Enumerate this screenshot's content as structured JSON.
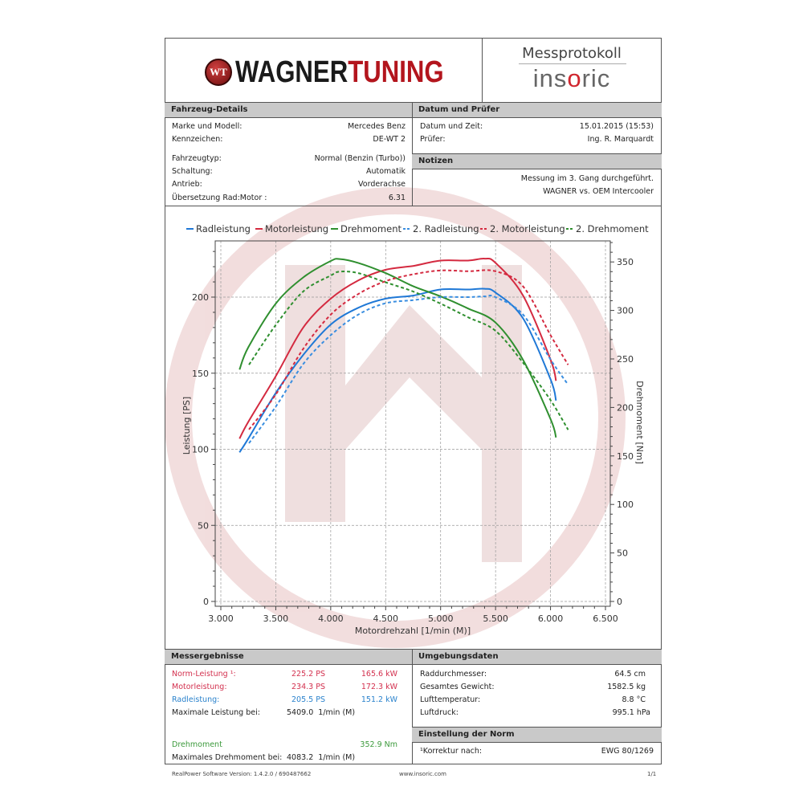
{
  "header": {
    "brand_part1": "WAGNER",
    "brand_part2": "TUNING",
    "brand_emblem": "WT",
    "title": "Messprotokoll",
    "partner_logo": "insoric"
  },
  "vehicle": {
    "heading": "Fahrzeug-Details",
    "rows": [
      {
        "label": "Marke und Modell:",
        "value": "Mercedes Benz"
      },
      {
        "label": "Kennzeichen:",
        "value": "DE-WT 2"
      },
      {
        "label": "Fahrzeugtyp:",
        "value": "Normal (Benzin (Turbo))"
      },
      {
        "label": "Schaltung:",
        "value": "Automatik"
      },
      {
        "label": "Antrieb:",
        "value": "Vorderachse"
      },
      {
        "label": "Übersetzung Rad:Motor :",
        "value": "6.31"
      }
    ]
  },
  "date": {
    "heading": "Datum und Prüfer",
    "rows": [
      {
        "label": "Datum und Zeit:",
        "value": "15.01.2015 (15:53)"
      },
      {
        "label": "Prüfer:",
        "value": "Ing. R. Marquardt"
      }
    ]
  },
  "notes": {
    "heading": "Notizen",
    "lines": [
      "Messung im 3. Gang durchgeführt.",
      "WAGNER vs. OEM Intercooler"
    ]
  },
  "chart_data": {
    "type": "line",
    "xlabel": "Motordrehzahl [1/min (M)]",
    "ylabel": "Leistung [PS]",
    "y2label": "Drehmoment [Nm]",
    "xlim": [
      3000,
      6500
    ],
    "ylim": [
      0,
      238
    ],
    "y2lim": [
      0,
      373
    ],
    "xticks": [
      3000,
      3500,
      4000,
      4500,
      5000,
      5500,
      6000,
      6500
    ],
    "xtick_labels": [
      "3.000",
      "3.500",
      "4.000",
      "4.500",
      "5.000",
      "5.500",
      "6.000",
      "6.500"
    ],
    "yticks": [
      0,
      50,
      100,
      150,
      200
    ],
    "y2ticks": [
      0,
      50,
      100,
      150,
      200,
      250,
      300,
      350
    ],
    "grid": true,
    "legend_position": "top",
    "colors": {
      "blue": "#1f78d6",
      "red": "#d42a40",
      "green": "#2f8f2f"
    },
    "series": [
      {
        "name": "Radleistung",
        "axis": "left",
        "color": "#1f78d6",
        "dashed": false,
        "x": [
          3170,
          3250,
          3500,
          3750,
          4000,
          4250,
          4500,
          4750,
          5000,
          5250,
          5400,
          5500,
          5750,
          6000,
          6050
        ],
        "y": [
          98,
          107,
          137,
          162,
          182,
          193,
          199,
          201,
          205,
          205,
          205.5,
          203,
          186,
          146,
          132
        ]
      },
      {
        "name": "Motorleistung",
        "axis": "left",
        "color": "#d42a40",
        "dashed": false,
        "x": [
          3170,
          3250,
          3500,
          3750,
          4000,
          4250,
          4500,
          4750,
          5000,
          5250,
          5400,
          5500,
          5750,
          6000,
          6050
        ],
        "y": [
          107,
          118,
          148,
          180,
          199,
          211,
          218,
          220.5,
          224,
          224,
          225.3,
          222.5,
          201,
          159,
          145
        ]
      },
      {
        "name": "Drehmoment",
        "axis": "right",
        "color": "#2f8f2f",
        "dashed": false,
        "x": [
          3170,
          3250,
          3500,
          3750,
          4000,
          4083,
          4250,
          4500,
          4750,
          5000,
          5250,
          5500,
          5750,
          6000,
          6050
        ],
        "y": [
          239,
          262,
          307,
          334,
          351,
          353,
          349,
          338.5,
          325,
          314.5,
          302,
          287.5,
          249,
          188,
          169
        ]
      },
      {
        "name": "2. Radleistung",
        "axis": "left",
        "color": "#3a8ee0",
        "dashed": true,
        "x": [
          3256,
          3500,
          3750,
          4000,
          4250,
          4500,
          4750,
          5000,
          5250,
          5400,
          5500,
          5750,
          6000,
          6160
        ],
        "y": [
          104,
          128,
          156,
          175,
          188.5,
          196,
          198,
          200,
          200,
          200.5,
          200,
          188.5,
          159,
          142.5
        ]
      },
      {
        "name": "2. Motorleistung",
        "axis": "left",
        "color": "#d42a40",
        "dashed": true,
        "x": [
          3256,
          3500,
          3750,
          4000,
          4250,
          4500,
          4750,
          5000,
          5250,
          5500,
          5750,
          6000,
          6160
        ],
        "y": [
          113,
          136,
          166,
          188.5,
          202,
          210.5,
          215,
          217.5,
          217,
          217,
          207,
          175,
          155.5
        ]
      },
      {
        "name": "2. Drehmoment",
        "axis": "right",
        "color": "#2f8f2f",
        "dashed": true,
        "x": [
          3256,
          3500,
          3750,
          4000,
          4083,
          4250,
          4500,
          4750,
          5000,
          5250,
          5500,
          5750,
          6000,
          6160
        ],
        "y": [
          244,
          285,
          319.5,
          336,
          340,
          338.5,
          329,
          319.5,
          307,
          293,
          279,
          246,
          207.5,
          177
        ]
      }
    ]
  },
  "results": {
    "heading": "Messergebnisse",
    "norm": {
      "label": "Norm-Leistung ¹:",
      "ps": "225.2 PS",
      "kw": "165.6 kW"
    },
    "motor": {
      "label": "Motorleistung:",
      "ps": "234.3 PS",
      "kw": "172.3 kW"
    },
    "rad": {
      "label": "Radleistung:",
      "ps": "205.5 PS",
      "kw": "151.2 kW"
    },
    "max_power": {
      "label": "Maximale Leistung bei:",
      "value": "5409.0  1/min (M)"
    },
    "torque": {
      "label": "Drehmoment",
      "value": "352.9 Nm"
    },
    "max_torque": {
      "label": "Maximales Drehmoment bei:",
      "value": "4083.2  1/min (M)"
    }
  },
  "environment": {
    "heading": "Umgebungsdaten",
    "rows": [
      {
        "label": "Raddurchmesser:",
        "value": "64.5 cm"
      },
      {
        "label": "Gesamtes Gewicht:",
        "value": "1582.5 kg"
      },
      {
        "label": "Lufttemperatur:",
        "value": "8.8 °C"
      },
      {
        "label": "Luftdruck:",
        "value": "995.1 hPa"
      }
    ]
  },
  "norm_setting": {
    "heading": "Einstellung der Norm",
    "label": "¹Korrektur nach:",
    "value": "EWG 80/1269"
  },
  "footer": {
    "software": "RealPower Software Version: 1.4.2.0 / 690487662",
    "website": "www.insoric.com",
    "page": "1/1"
  }
}
